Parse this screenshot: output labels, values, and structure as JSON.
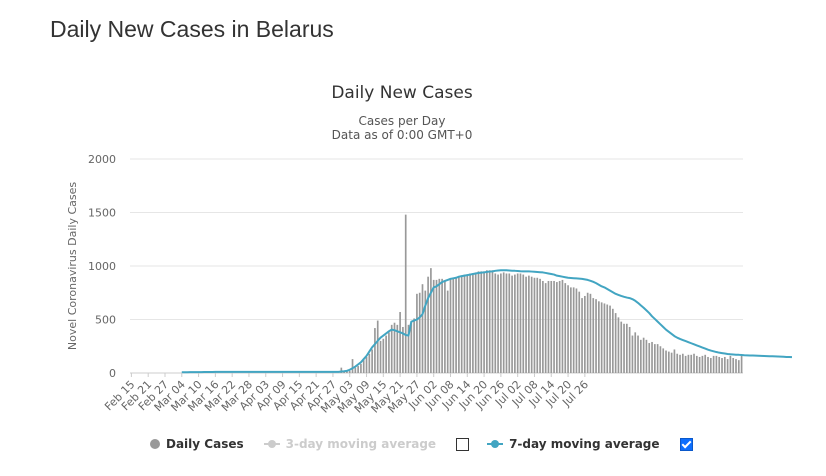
{
  "page": {
    "title": "Daily New Cases in Belarus"
  },
  "chart_data": {
    "type": "bar",
    "title": "Daily New Cases",
    "subtitle_line1": "Cases per Day",
    "subtitle_line2": "Data as of 0:00 GMT+0",
    "ylabel": "Novel Coronavirus Daily Cases",
    "xlabel": "",
    "ylim": [
      0,
      2000
    ],
    "yticks": [
      0,
      500,
      1000,
      1500,
      2000
    ],
    "start_date": "Feb 15",
    "xtick_labels": [
      "Feb 15",
      "Feb 21",
      "Feb 27",
      "Mar 04",
      "Mar 10",
      "Mar 16",
      "Mar 22",
      "Mar 28",
      "Apr 03",
      "Apr 09",
      "Apr 15",
      "Apr 21",
      "Apr 27",
      "May 03",
      "May 09",
      "May 15",
      "May 21",
      "May 27",
      "Jun 02",
      "Jun 08",
      "Jun 14",
      "Jun 20",
      "Jun 26",
      "Jul 02",
      "Jul 08",
      "Jul 14",
      "Jul 20",
      "Jul 26"
    ],
    "grid": true,
    "legend_position": "bottom",
    "series": [
      {
        "name": "Daily Cases",
        "kind": "bar",
        "color": "#999999",
        "values": [
          0,
          0,
          0,
          0,
          0,
          0,
          0,
          0,
          0,
          0,
          0,
          0,
          0,
          0,
          0,
          0,
          0,
          0,
          0,
          0,
          0,
          0,
          0,
          0,
          0,
          0,
          0,
          0,
          0,
          0,
          0,
          0,
          0,
          0,
          0,
          0,
          0,
          0,
          0,
          0,
          0,
          0,
          0,
          0,
          0,
          0,
          0,
          0,
          0,
          0,
          0,
          0,
          0,
          0,
          0,
          0,
          0,
          0,
          0,
          0,
          0,
          0,
          0,
          0,
          0,
          0,
          0,
          0,
          0,
          0,
          0,
          0,
          0,
          0,
          0,
          50,
          10,
          15,
          20,
          130,
          50,
          65,
          85,
          120,
          150,
          180,
          220,
          420,
          490,
          300,
          320,
          350,
          380,
          450,
          470,
          450,
          570,
          430,
          1480,
          450,
          470,
          510,
          740,
          750,
          830,
          770,
          900,
          980,
          870,
          870,
          880,
          880,
          860,
          770,
          880,
          880,
          890,
          900,
          910,
          920,
          920,
          930,
          930,
          940,
          950,
          950,
          950,
          960,
          960,
          960,
          930,
          920,
          930,
          940,
          930,
          930,
          910,
          920,
          930,
          930,
          920,
          900,
          910,
          900,
          890,
          890,
          880,
          860,
          840,
          860,
          860,
          860,
          850,
          860,
          870,
          840,
          820,
          800,
          800,
          790,
          760,
          700,
          720,
          750,
          740,
          700,
          690,
          670,
          660,
          650,
          640,
          630,
          600,
          560,
          520,
          480,
          460,
          460,
          430,
          350,
          380,
          350,
          310,
          330,
          310,
          280,
          290,
          270,
          270,
          250,
          230,
          210,
          200,
          190,
          220,
          180,
          170,
          180,
          160,
          170,
          170,
          180,
          160,
          150,
          160,
          170,
          150,
          140,
          160,
          160,
          150,
          140,
          150,
          130,
          160,
          140,
          130,
          120,
          160
        ]
      },
      {
        "name": "3-day moving average",
        "kind": "line",
        "color": "#cccccc",
        "enabled": false
      },
      {
        "name": "7-day moving average",
        "kind": "line",
        "color": "#42a5c2",
        "enabled": true,
        "start_index": 18,
        "values": [
          7,
          7,
          7,
          8,
          8,
          8,
          8,
          8,
          9,
          9,
          9,
          9,
          10,
          10,
          10,
          10,
          10,
          10,
          10,
          11,
          11,
          11,
          11,
          11,
          11,
          11,
          11,
          11,
          11,
          11,
          11,
          11,
          11,
          11,
          11,
          11,
          11,
          11,
          11,
          11,
          11,
          11,
          11,
          11,
          11,
          11,
          11,
          11,
          11,
          11,
          11,
          11,
          11,
          11,
          11,
          11,
          11,
          14,
          16,
          20,
          30,
          45,
          60,
          80,
          100,
          130,
          160,
          200,
          240,
          270,
          300,
          330,
          350,
          370,
          390,
          405,
          400,
          390,
          380,
          370,
          355,
          350,
          480,
          490,
          500,
          520,
          550,
          630,
          700,
          750,
          800,
          810,
          830,
          850,
          860,
          870,
          880,
          885,
          890,
          900,
          905,
          910,
          915,
          920,
          925,
          930,
          935,
          938,
          940,
          945,
          948,
          950,
          955,
          958,
          960,
          960,
          960,
          958,
          956,
          955,
          953,
          951,
          950,
          950,
          950,
          948,
          946,
          944,
          942,
          940,
          935,
          930,
          925,
          920,
          910,
          905,
          900,
          895,
          890,
          888,
          886,
          884,
          882,
          880,
          875,
          870,
          862,
          852,
          840,
          825,
          810,
          800,
          785,
          770,
          755,
          740,
          730,
          720,
          712,
          705,
          700,
          690,
          675,
          655,
          632,
          610,
          585,
          560,
          530,
          505,
          480,
          455,
          430,
          405,
          385,
          365,
          345,
          330,
          318,
          308,
          298,
          288,
          278,
          268,
          258,
          248,
          238,
          228,
          218,
          210,
          203,
          196,
          190,
          186,
          182,
          178,
          175,
          173,
          171,
          170,
          168,
          166,
          165,
          164,
          163,
          162,
          161,
          160,
          159,
          158,
          157,
          156,
          155,
          154,
          153,
          152,
          150,
          149,
          148
        ]
      }
    ]
  },
  "legend": {
    "items": [
      {
        "label": "Daily Cases",
        "color": "#999999"
      },
      {
        "label": "3-day moving average",
        "color": "#cccccc",
        "checked": false
      },
      {
        "label": "7-day moving average",
        "color": "#42a5c2",
        "checked": true
      }
    ]
  }
}
